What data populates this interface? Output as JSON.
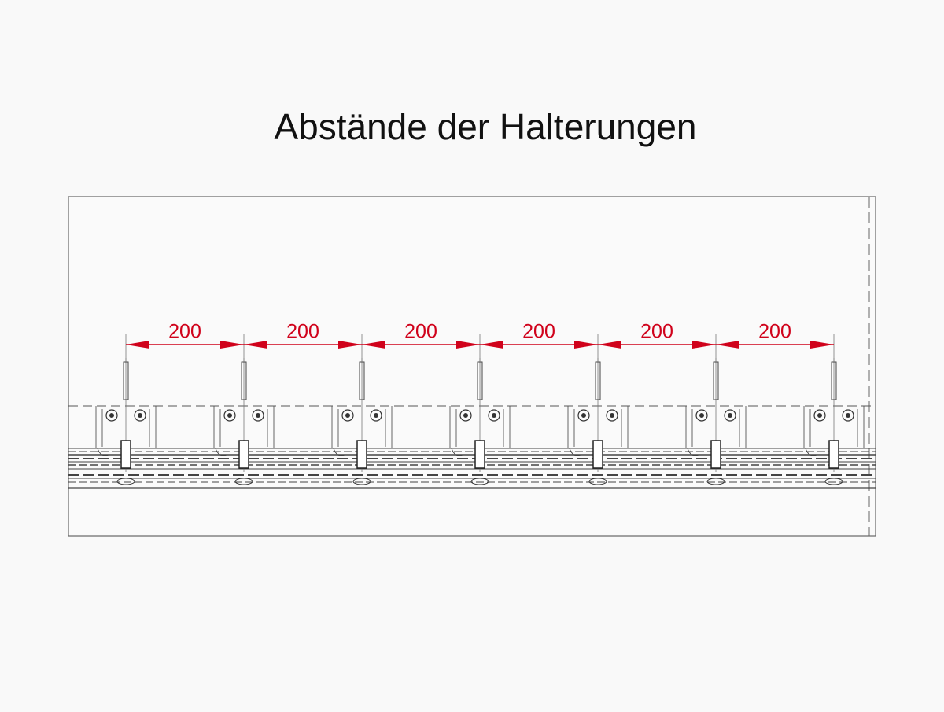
{
  "title": "Abstände der Halterungen",
  "dimensions": [
    "200",
    "200",
    "200",
    "200",
    "200",
    "200"
  ]
}
